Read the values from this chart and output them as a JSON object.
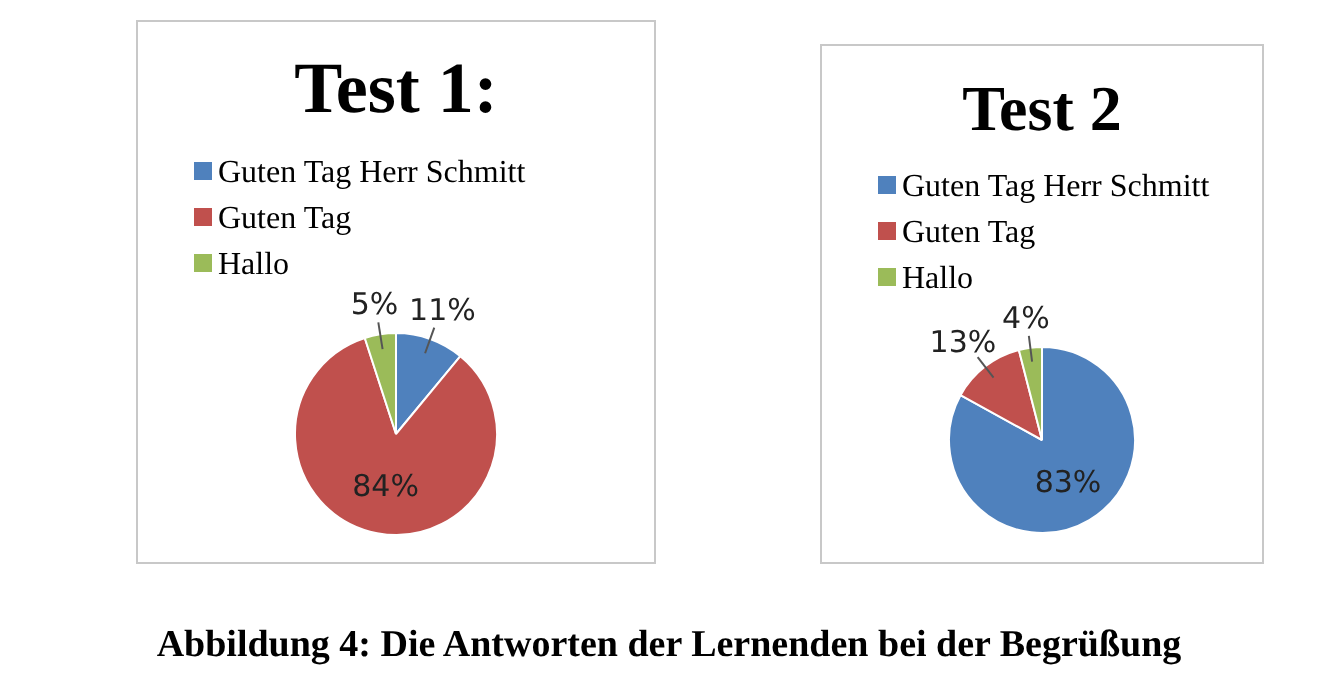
{
  "chart_data": [
    {
      "type": "pie",
      "title": "Test 1:",
      "categories": [
        "Guten Tag Herr Schmitt",
        "Guten Tag",
        "Hallo"
      ],
      "values": [
        11,
        84,
        5
      ],
      "value_labels": [
        "11%",
        "84%",
        "5%"
      ],
      "colors": [
        "#4f81bd",
        "#c0504d",
        "#9bbb59"
      ],
      "legend": "top"
    },
    {
      "type": "pie",
      "title": "Test 2",
      "categories": [
        "Guten Tag Herr Schmitt",
        "Guten Tag",
        "Hallo"
      ],
      "values": [
        83,
        13,
        4
      ],
      "value_labels": [
        "83%",
        "13%",
        "4%"
      ],
      "colors": [
        "#4f81bd",
        "#c0504d",
        "#9bbb59"
      ],
      "legend": "top",
      "annotations": [
        "Abbildung 4: Die Antworten der Lernenden bei der Begrüßung"
      ]
    }
  ]
}
